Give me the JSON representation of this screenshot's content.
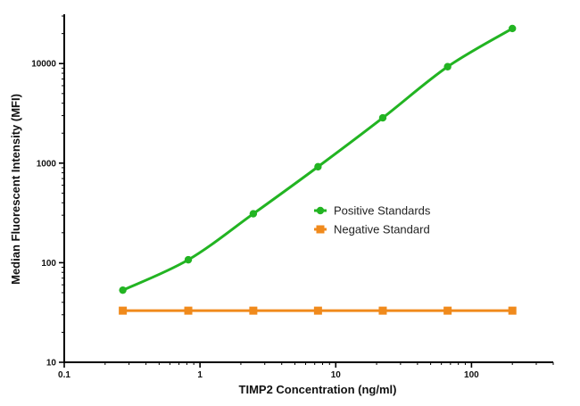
{
  "chart_data": {
    "type": "line",
    "xlabel": "TIMP2 Concentration (ng/ml)",
    "ylabel": "Median Fluorescent Intensity (MFI)",
    "xscale": "log",
    "yscale": "log",
    "xlim": [
      0.1,
      400
    ],
    "ylim": [
      10,
      30000
    ],
    "x_ticks": [
      {
        "value": 0.1,
        "label": "0.1"
      },
      {
        "value": 1,
        "label": "1"
      },
      {
        "value": 10,
        "label": "10"
      },
      {
        "value": 100,
        "label": "100"
      }
    ],
    "y_ticks": [
      {
        "value": 10,
        "label": "10"
      },
      {
        "value": 100,
        "label": "100"
      },
      {
        "value": 1000,
        "label": "1000"
      },
      {
        "value": 10000,
        "label": "10000"
      }
    ],
    "grid": false,
    "legend_position": "center-right",
    "series": [
      {
        "name": "Positive Standards",
        "marker": "circle",
        "color": "#22b422",
        "curve": "smooth-fit",
        "x": [
          0.27,
          0.82,
          2.47,
          7.4,
          22.2,
          66.7,
          200
        ],
        "y": [
          53,
          107,
          310,
          920,
          2850,
          9300,
          22500
        ]
      },
      {
        "name": "Negative Standard",
        "marker": "square",
        "color": "#f08a1c",
        "curve": "linear",
        "x": [
          0.27,
          0.82,
          2.47,
          7.4,
          22.2,
          66.7,
          200
        ],
        "y": [
          33,
          33,
          33,
          33,
          33,
          33,
          33
        ]
      }
    ]
  }
}
